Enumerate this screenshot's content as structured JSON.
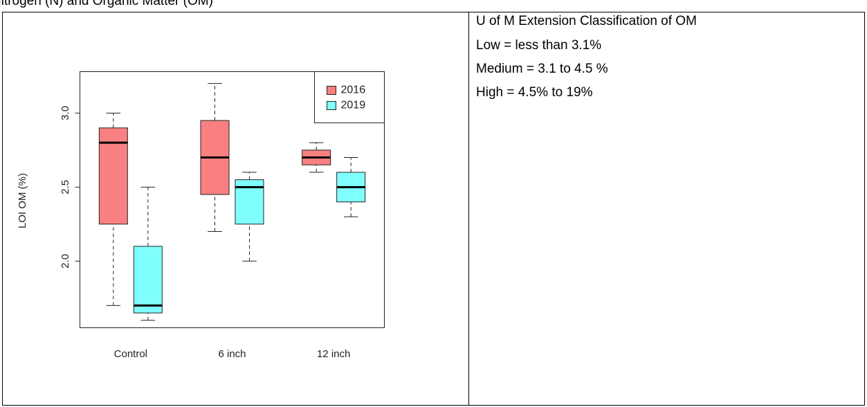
{
  "heading": "Nitrogen (N) and Organic Matter (OM)",
  "side": {
    "lines": [
      "U of M Extension Classification of OM",
      "Low = less than 3.1%",
      "Medium = 3.1 to 4.5 %",
      "High = 4.5% to 19%"
    ]
  },
  "chart_data": {
    "type": "box",
    "ylabel": "LOI OM (%)",
    "categories": [
      "Control",
      "6 inch",
      "12 inch"
    ],
    "ylim": [
      1.55,
      3.28
    ],
    "yticks": [
      {
        "value": 2,
        "label": "2.0"
      },
      {
        "value": 2.5,
        "label": "2.5"
      },
      {
        "value": 3,
        "label": "3.0"
      }
    ],
    "legend": "top-right",
    "series": [
      {
        "name": "2016",
        "color": "#f88080",
        "min": [
          1.7,
          2.2,
          2.6
        ],
        "q1": [
          2.25,
          2.45,
          2.65
        ],
        "median": [
          2.8,
          2.7,
          2.7
        ],
        "q3": [
          2.9,
          2.95,
          2.75
        ],
        "max": [
          3.0,
          3.2,
          2.8
        ]
      },
      {
        "name": "2019",
        "color": "#80ffff",
        "min": [
          1.6,
          2.0,
          2.3
        ],
        "q1": [
          1.65,
          2.25,
          2.4
        ],
        "median": [
          1.7,
          2.5,
          2.5
        ],
        "q3": [
          2.1,
          2.55,
          2.6
        ],
        "max": [
          2.5,
          2.6,
          2.7
        ]
      }
    ]
  }
}
